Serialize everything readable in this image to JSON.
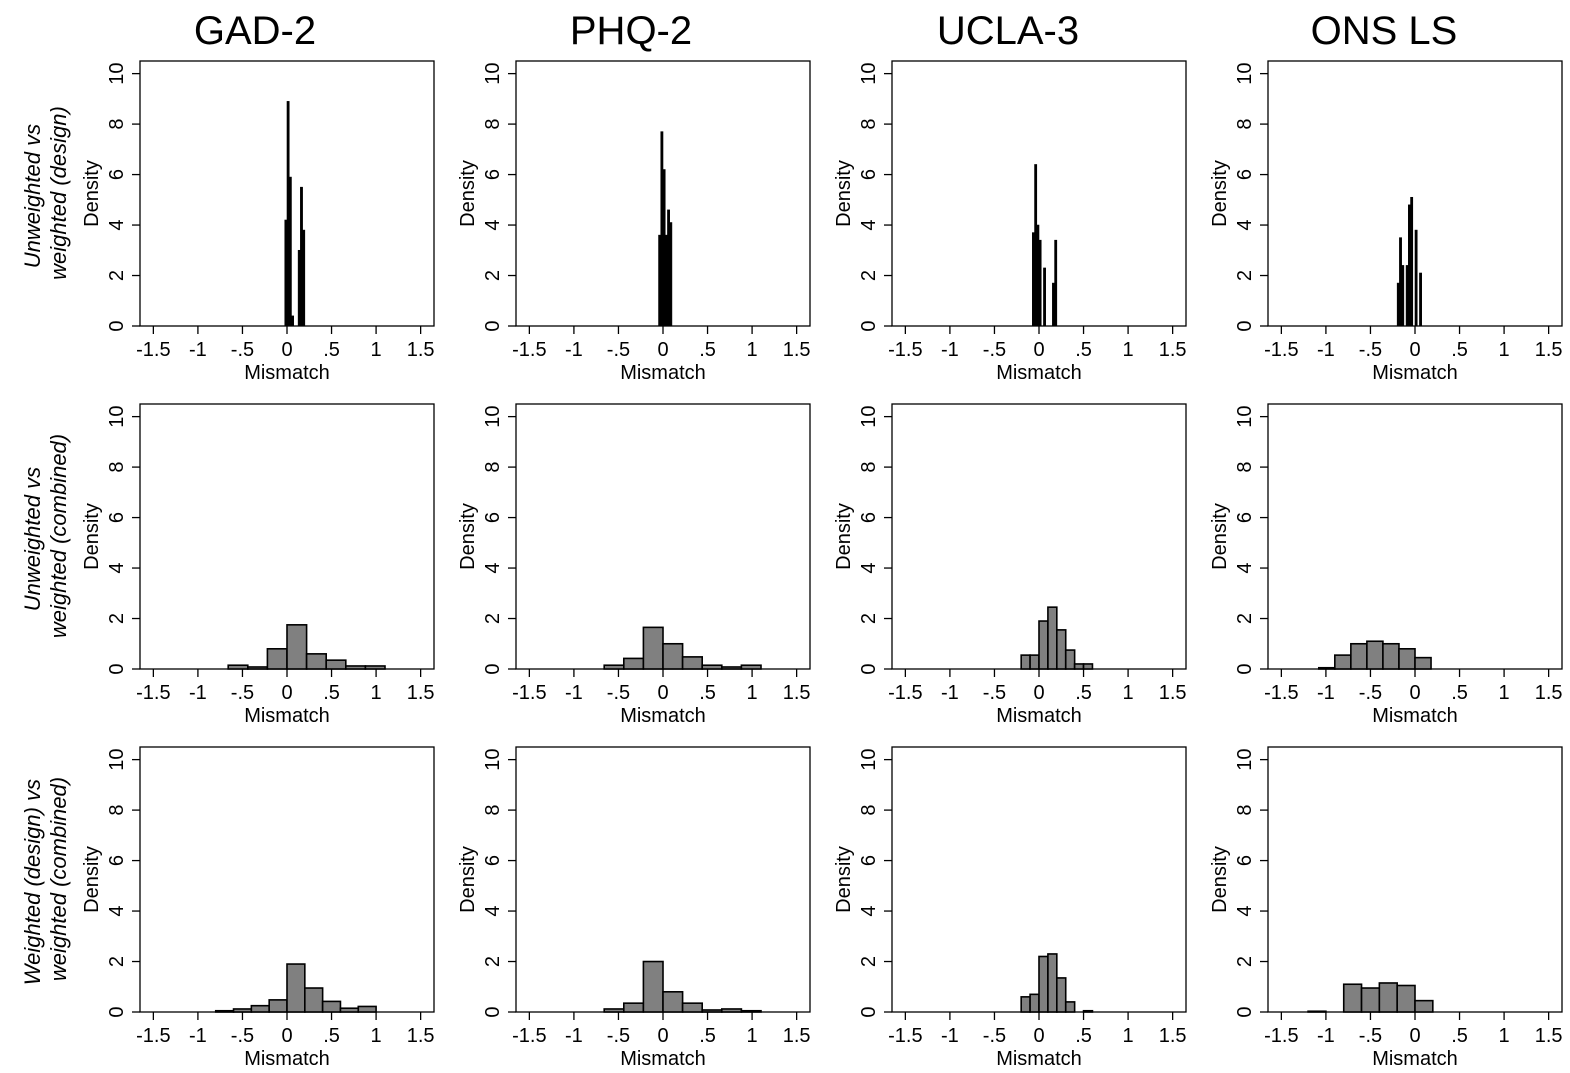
{
  "column_titles": [
    "GAD-2",
    "PHQ-2",
    "UCLA-3",
    "ONS LS"
  ],
  "row_labels": [
    [
      "Unweighted vs",
      "weighted (design)"
    ],
    [
      "Unweighted vs",
      "weighted (combined)"
    ],
    [
      "Weighted (design) vs",
      "weighted (combined)"
    ]
  ],
  "colors": {
    "narrow_bar_fill": "#000000",
    "wide_bar_fill": "#808080",
    "bar_stroke": "#000000"
  },
  "chart_data": [
    {
      "type": "bar",
      "title": "GAD-2",
      "row_label": "Unweighted vs weighted (design)",
      "xlabel": "Mismatch",
      "ylabel": "Density",
      "xlim": [
        -1.65,
        1.65
      ],
      "ylim": [
        0,
        10.5
      ],
      "xticks": [
        "-1.5",
        "-1",
        "-.5",
        "0",
        ".5",
        "1",
        "1.5"
      ],
      "yticks": [
        "0",
        "2",
        "4",
        "6",
        "8",
        "10"
      ],
      "grid": false,
      "bin_width": 0.025,
      "bins": [
        {
          "x": -0.025,
          "y": 4.2
        },
        {
          "x": 0.0,
          "y": 8.9
        },
        {
          "x": 0.025,
          "y": 5.9
        },
        {
          "x": 0.05,
          "y": 0.4
        },
        {
          "x": 0.125,
          "y": 3.0
        },
        {
          "x": 0.15,
          "y": 5.5
        },
        {
          "x": 0.175,
          "y": 3.8
        }
      ]
    },
    {
      "type": "bar",
      "title": "PHQ-2",
      "row_label": "Unweighted vs weighted (design)",
      "xlabel": "Mismatch",
      "ylabel": "Density",
      "xlim": [
        -1.65,
        1.65
      ],
      "ylim": [
        0,
        10.5
      ],
      "xticks": [
        "-1.5",
        "-1",
        "-.5",
        "0",
        ".5",
        "1",
        "1.5"
      ],
      "yticks": [
        "0",
        "2",
        "4",
        "6",
        "8",
        "10"
      ],
      "grid": false,
      "bin_width": 0.025,
      "bins": [
        {
          "x": -0.05,
          "y": 3.6
        },
        {
          "x": -0.025,
          "y": 7.7
        },
        {
          "x": 0.0,
          "y": 6.2
        },
        {
          "x": 0.025,
          "y": 3.6
        },
        {
          "x": 0.05,
          "y": 4.6
        },
        {
          "x": 0.075,
          "y": 4.1
        }
      ]
    },
    {
      "type": "bar",
      "title": "UCLA-3",
      "row_label": "Unweighted vs weighted (design)",
      "xlabel": "Mismatch",
      "ylabel": "Density",
      "xlim": [
        -1.65,
        1.65
      ],
      "ylim": [
        0,
        10.5
      ],
      "xticks": [
        "-1.5",
        "-1",
        "-.5",
        "0",
        ".5",
        "1",
        "1.5"
      ],
      "yticks": [
        "0",
        "2",
        "4",
        "6",
        "8",
        "10"
      ],
      "grid": false,
      "bin_width": 0.025,
      "bins": [
        {
          "x": -0.075,
          "y": 3.7
        },
        {
          "x": -0.05,
          "y": 6.4
        },
        {
          "x": -0.025,
          "y": 4.0
        },
        {
          "x": 0.0,
          "y": 3.4
        },
        {
          "x": 0.05,
          "y": 2.3
        },
        {
          "x": 0.15,
          "y": 1.7
        },
        {
          "x": 0.175,
          "y": 3.4
        }
      ]
    },
    {
      "type": "bar",
      "title": "ONS LS",
      "row_label": "Unweighted vs weighted (design)",
      "xlabel": "Mismatch",
      "ylabel": "Density",
      "xlim": [
        -1.65,
        1.65
      ],
      "ylim": [
        0,
        10.5
      ],
      "xticks": [
        "-1.5",
        "-1",
        "-.5",
        "0",
        ".5",
        "1",
        "1.5"
      ],
      "yticks": [
        "0",
        "2",
        "4",
        "6",
        "8",
        "10"
      ],
      "grid": false,
      "bin_width": 0.025,
      "bins": [
        {
          "x": -0.2,
          "y": 1.7
        },
        {
          "x": -0.175,
          "y": 3.5
        },
        {
          "x": -0.15,
          "y": 2.4
        },
        {
          "x": -0.1,
          "y": 2.4
        },
        {
          "x": -0.075,
          "y": 4.8
        },
        {
          "x": -0.05,
          "y": 5.1
        },
        {
          "x": 0.0,
          "y": 3.8
        },
        {
          "x": 0.05,
          "y": 2.1
        }
      ]
    },
    {
      "type": "bar",
      "title": "GAD-2",
      "row_label": "Unweighted vs weighted (combined)",
      "xlabel": "Mismatch",
      "ylabel": "Density",
      "xlim": [
        -1.65,
        1.65
      ],
      "ylim": [
        0,
        10.5
      ],
      "xticks": [
        "-1.5",
        "-1",
        "-.5",
        "0",
        ".5",
        "1",
        "1.5"
      ],
      "yticks": [
        "0",
        "2",
        "4",
        "6",
        "8",
        "10"
      ],
      "grid": false,
      "bin_width": 0.22,
      "bins": [
        {
          "x": -0.66,
          "y": 0.15
        },
        {
          "x": -0.44,
          "y": 0.08
        },
        {
          "x": -0.22,
          "y": 0.8
        },
        {
          "x": 0.0,
          "y": 1.75
        },
        {
          "x": 0.22,
          "y": 0.6
        },
        {
          "x": 0.44,
          "y": 0.35
        },
        {
          "x": 0.66,
          "y": 0.12
        },
        {
          "x": 0.88,
          "y": 0.12
        }
      ]
    },
    {
      "type": "bar",
      "title": "PHQ-2",
      "row_label": "Unweighted vs weighted (combined)",
      "xlabel": "Mismatch",
      "ylabel": "Density",
      "xlim": [
        -1.65,
        1.65
      ],
      "ylim": [
        0,
        10.5
      ],
      "xticks": [
        "-1.5",
        "-1",
        "-.5",
        "0",
        ".5",
        "1",
        "1.5"
      ],
      "yticks": [
        "0",
        "2",
        "4",
        "6",
        "8",
        "10"
      ],
      "grid": false,
      "bin_width": 0.22,
      "bins": [
        {
          "x": -0.66,
          "y": 0.15
        },
        {
          "x": -0.44,
          "y": 0.42
        },
        {
          "x": -0.22,
          "y": 1.65
        },
        {
          "x": 0.0,
          "y": 1.0
        },
        {
          "x": 0.22,
          "y": 0.48
        },
        {
          "x": 0.44,
          "y": 0.15
        },
        {
          "x": 0.66,
          "y": 0.08
        },
        {
          "x": 0.88,
          "y": 0.15
        }
      ]
    },
    {
      "type": "bar",
      "title": "UCLA-3",
      "row_label": "Unweighted vs weighted (combined)",
      "xlabel": "Mismatch",
      "ylabel": "Density",
      "xlim": [
        -1.65,
        1.65
      ],
      "ylim": [
        0,
        10.5
      ],
      "xticks": [
        "-1.5",
        "-1",
        "-.5",
        "0",
        ".5",
        "1",
        "1.5"
      ],
      "yticks": [
        "0",
        "2",
        "4",
        "6",
        "8",
        "10"
      ],
      "grid": false,
      "bin_width": 0.1,
      "bins": [
        {
          "x": -0.2,
          "y": 0.55
        },
        {
          "x": -0.1,
          "y": 0.55
        },
        {
          "x": 0.0,
          "y": 1.9
        },
        {
          "x": 0.1,
          "y": 2.45
        },
        {
          "x": 0.2,
          "y": 1.55
        },
        {
          "x": 0.3,
          "y": 0.75
        },
        {
          "x": 0.4,
          "y": 0.2
        },
        {
          "x": 0.5,
          "y": 0.2
        }
      ]
    },
    {
      "type": "bar",
      "title": "ONS LS",
      "row_label": "Unweighted vs weighted (combined)",
      "xlabel": "Mismatch",
      "ylabel": "Density",
      "xlim": [
        -1.65,
        1.65
      ],
      "ylim": [
        0,
        10.5
      ],
      "xticks": [
        "-1.5",
        "-1",
        "-.5",
        "0",
        ".5",
        "1",
        "1.5"
      ],
      "yticks": [
        "0",
        "2",
        "4",
        "6",
        "8",
        "10"
      ],
      "grid": false,
      "bin_width": 0.18,
      "bins": [
        {
          "x": -1.08,
          "y": 0.05
        },
        {
          "x": -0.9,
          "y": 0.55
        },
        {
          "x": -0.72,
          "y": 1.0
        },
        {
          "x": -0.54,
          "y": 1.1
        },
        {
          "x": -0.36,
          "y": 1.0
        },
        {
          "x": -0.18,
          "y": 0.8
        },
        {
          "x": 0.0,
          "y": 0.45
        }
      ]
    },
    {
      "type": "bar",
      "title": "GAD-2",
      "row_label": "Weighted (design) vs weighted (combined)",
      "xlabel": "Mismatch",
      "ylabel": "Density",
      "xlim": [
        -1.65,
        1.65
      ],
      "ylim": [
        0,
        10.5
      ],
      "xticks": [
        "-1.5",
        "-1",
        "-.5",
        "0",
        ".5",
        "1",
        "1.5"
      ],
      "yticks": [
        "0",
        "2",
        "4",
        "6",
        "8",
        "10"
      ],
      "grid": false,
      "bin_width": 0.2,
      "bins": [
        {
          "x": -0.8,
          "y": 0.05
        },
        {
          "x": -0.6,
          "y": 0.12
        },
        {
          "x": -0.4,
          "y": 0.25
        },
        {
          "x": -0.2,
          "y": 0.48
        },
        {
          "x": 0.0,
          "y": 1.9
        },
        {
          "x": 0.2,
          "y": 0.95
        },
        {
          "x": 0.4,
          "y": 0.42
        },
        {
          "x": 0.6,
          "y": 0.15
        },
        {
          "x": 0.8,
          "y": 0.22
        }
      ]
    },
    {
      "type": "bar",
      "title": "PHQ-2",
      "row_label": "Weighted (design) vs weighted (combined)",
      "xlabel": "Mismatch",
      "ylabel": "Density",
      "xlim": [
        -1.65,
        1.65
      ],
      "ylim": [
        0,
        10.5
      ],
      "xticks": [
        "-1.5",
        "-1",
        "-.5",
        "0",
        ".5",
        "1",
        "1.5"
      ],
      "yticks": [
        "0",
        "2",
        "4",
        "6",
        "8",
        "10"
      ],
      "grid": false,
      "bin_width": 0.22,
      "bins": [
        {
          "x": -0.66,
          "y": 0.12
        },
        {
          "x": -0.44,
          "y": 0.35
        },
        {
          "x": -0.22,
          "y": 2.0
        },
        {
          "x": 0.0,
          "y": 0.8
        },
        {
          "x": 0.22,
          "y": 0.35
        },
        {
          "x": 0.44,
          "y": 0.08
        },
        {
          "x": 0.66,
          "y": 0.12
        },
        {
          "x": 0.88,
          "y": 0.05
        }
      ]
    },
    {
      "type": "bar",
      "title": "UCLA-3",
      "row_label": "Weighted (design) vs weighted (combined)",
      "xlabel": "Mismatch",
      "ylabel": "Density",
      "xlim": [
        -1.65,
        1.65
      ],
      "ylim": [
        0,
        10.5
      ],
      "xticks": [
        "-1.5",
        "-1",
        "-.5",
        "0",
        ".5",
        "1",
        "1.5"
      ],
      "yticks": [
        "0",
        "2",
        "4",
        "6",
        "8",
        "10"
      ],
      "grid": false,
      "bin_width": 0.1,
      "bins": [
        {
          "x": -0.2,
          "y": 0.6
        },
        {
          "x": -0.1,
          "y": 0.7
        },
        {
          "x": 0.0,
          "y": 2.2
        },
        {
          "x": 0.1,
          "y": 2.3
        },
        {
          "x": 0.2,
          "y": 1.35
        },
        {
          "x": 0.3,
          "y": 0.4
        },
        {
          "x": 0.5,
          "y": 0.05
        }
      ]
    },
    {
      "type": "bar",
      "title": "ONS LS",
      "row_label": "Weighted (design) vs weighted (combined)",
      "xlabel": "Mismatch",
      "ylabel": "Density",
      "xlim": [
        -1.65,
        1.65
      ],
      "ylim": [
        0,
        10.5
      ],
      "xticks": [
        "-1.5",
        "-1",
        "-.5",
        "0",
        ".5",
        "1",
        "1.5"
      ],
      "yticks": [
        "0",
        "2",
        "4",
        "6",
        "8",
        "10"
      ],
      "grid": false,
      "bin_width": 0.2,
      "bins": [
        {
          "x": -1.2,
          "y": 0.03
        },
        {
          "x": -0.8,
          "y": 1.1
        },
        {
          "x": -0.6,
          "y": 0.95
        },
        {
          "x": -0.4,
          "y": 1.15
        },
        {
          "x": -0.2,
          "y": 1.05
        },
        {
          "x": 0.0,
          "y": 0.45
        }
      ]
    }
  ]
}
